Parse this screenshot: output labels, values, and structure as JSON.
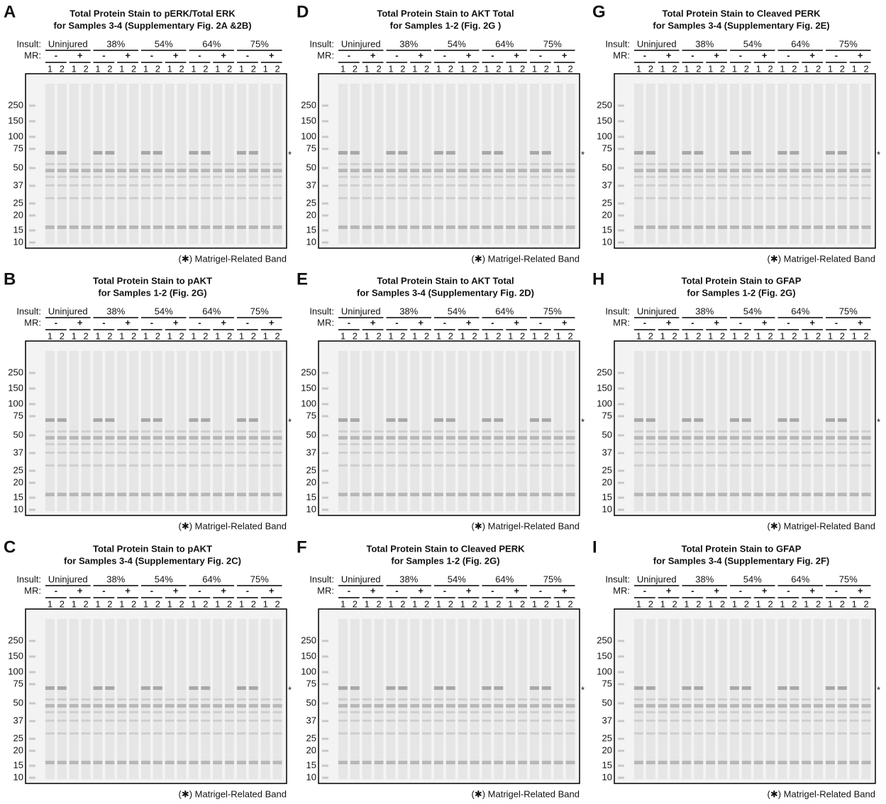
{
  "panels": [
    {
      "letter": "A",
      "title": [
        "Total Protein Stain to pERK/Total ERK",
        "for Samples 3-4 (Supplementary Fig. 2A &2B)"
      ]
    },
    {
      "letter": "B",
      "title": [
        "Total Protein Stain to pAKT",
        "for Samples 1-2 (Fig. 2G)"
      ]
    },
    {
      "letter": "C",
      "title": [
        "Total Protein Stain to pAKT",
        "for Samples 3-4 (Supplementary Fig. 2C)"
      ]
    },
    {
      "letter": "D",
      "title": [
        "Total Protein Stain to AKT Total",
        "for Samples 1-2 (Fig. 2G )"
      ]
    },
    {
      "letter": "E",
      "title": [
        "Total Protein Stain to AKT Total",
        "for Samples 3-4 (Supplementary Fig. 2D)"
      ]
    },
    {
      "letter": "F",
      "title": [
        "Total Protein Stain to Cleaved PERK",
        "for Samples 1-2 (Fig. 2G)"
      ]
    },
    {
      "letter": "G",
      "title": [
        "Total Protein Stain to Cleaved PERK",
        "for Samples 3-4 (Supplementary Fig. 2E)"
      ]
    },
    {
      "letter": "H",
      "title": [
        "Total Protein Stain to GFAP",
        "for Samples 1-2 (Fig. 2G)"
      ]
    },
    {
      "letter": "I",
      "title": [
        "Total Protein Stain to GFAP",
        "for Samples 3-4 (Supplementary Fig. 2F)"
      ]
    }
  ],
  "labels": {
    "insult": "Insult:",
    "mr": "MR:",
    "groups": [
      "Uninjured",
      "38%",
      "54%",
      "64%",
      "75%"
    ],
    "signs": [
      "-",
      "+"
    ],
    "lane_numbers": [
      "1",
      "2"
    ],
    "markers": [
      250,
      150,
      100,
      75,
      50,
      37,
      25,
      20,
      15,
      10
    ],
    "asterisk": "*",
    "footnote": "(✱) Matrigel-Related Band"
  }
}
